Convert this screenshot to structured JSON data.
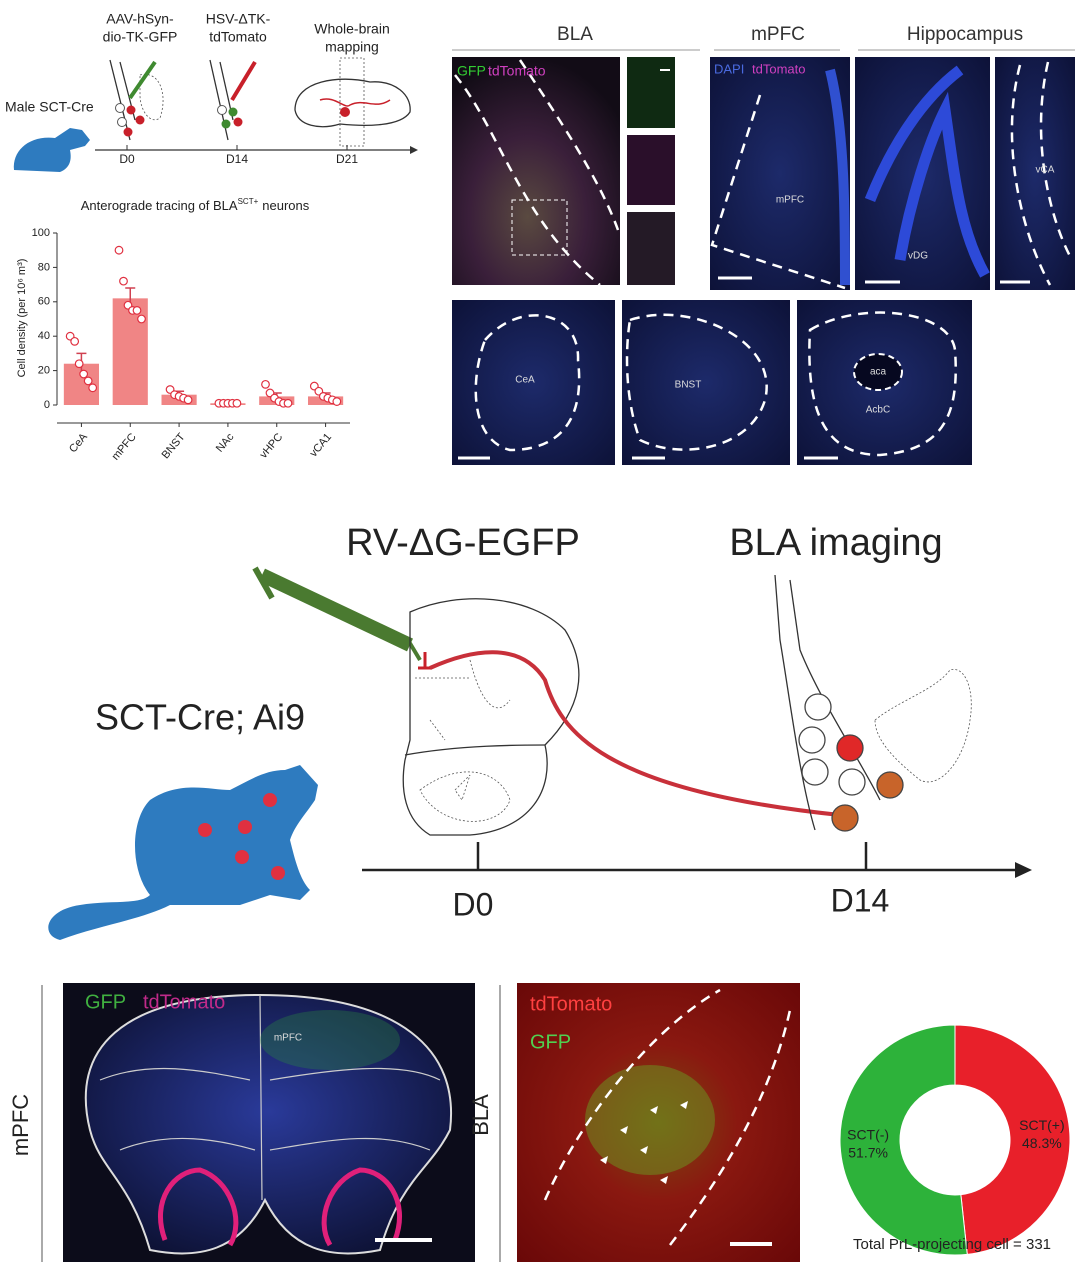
{
  "timeline_top": {
    "subject": "Male SCT-Cre",
    "step1": [
      "AAV-hSyn-",
      "dio-TK-GFP"
    ],
    "step2": [
      "HSV-ΔTK-",
      "tdTomato"
    ],
    "step3": [
      "Whole-brain",
      "mapping"
    ],
    "days": [
      "D0",
      "D14",
      "D21"
    ]
  },
  "images_top": {
    "headers": [
      "BLA",
      "mPFC",
      "Hippocampus"
    ],
    "bla_labels": [
      "GFP",
      "tdTomato"
    ],
    "mpfc_labels": [
      "DAPI",
      "tdTomato",
      "mPFC"
    ],
    "hippo_labels": [
      "vDG",
      "vCA"
    ],
    "row2_labels": [
      "CeA",
      "BNST",
      "aca",
      "AcbC"
    ]
  },
  "schematic": {
    "virus": "RV-ΔG-EGFP",
    "imaging": "BLA imaging",
    "subject": "SCT-Cre; Ai9",
    "days": [
      "D0",
      "D14"
    ]
  },
  "images_bottom": {
    "mpfc_side": "mPFC",
    "mpfc_labels": [
      "GFP",
      "tdTomato",
      "mPFC"
    ],
    "bla_side": "BLA",
    "bla_labels": [
      "tdTomato",
      "GFP"
    ]
  },
  "chart_data": [
    {
      "type": "bar",
      "title": [
        "Anterograde tracing of BLA",
        "SCT+",
        "neurons"
      ],
      "y_label": "Cell density (per 10⁶ m³)",
      "categories": [
        "CeA",
        "mPFC",
        "BNST",
        "NAc",
        "vHPC",
        "vCA1"
      ],
      "values": [
        24,
        62,
        6,
        1,
        5,
        5
      ],
      "errors": [
        6,
        6,
        2,
        0.5,
        2,
        2
      ],
      "points": [
        [
          40,
          37,
          24,
          18,
          14,
          10
        ],
        [
          90,
          72,
          58,
          55,
          55,
          50
        ],
        [
          9,
          6,
          5,
          4,
          3
        ],
        [
          1,
          1,
          1,
          1,
          1
        ],
        [
          12,
          7,
          4,
          2,
          1,
          1
        ],
        [
          11,
          8,
          5,
          4,
          3,
          2
        ]
      ],
      "color": "#f08585",
      "point_color": "#e03040",
      "ylim": [
        0,
        100
      ],
      "yticks": [
        0,
        20,
        40,
        60,
        80,
        100
      ]
    },
    {
      "type": "pie",
      "donut": true,
      "categories": [
        "SCT(+)",
        "SCT(-)"
      ],
      "values": [
        48.3,
        51.7
      ],
      "value_labels": [
        "48.3%",
        "51.7%"
      ],
      "colors": [
        "#e8202a",
        "#2db23a"
      ],
      "caption": "Total PrL-projecting cell = 331"
    }
  ]
}
